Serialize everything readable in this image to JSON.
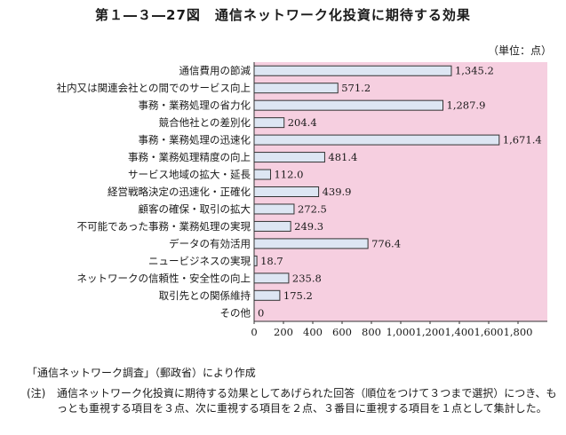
{
  "title": "第１―３―27図　通信ネットワーク化投資に期待する効果",
  "unit_label": "（単位：点）",
  "source": "「通信ネットワーク調査」（郵政省）により作成",
  "note_prefix": "(注)",
  "note_body": "通信ネットワーク化投資に期待する効果としてあげられた回答（順位をつけて３つまで選択）につき、もっとも重視する項目を３点、次に重視する項目を２点、３番目に重視する項目を１点として集計した。",
  "colors": {
    "plot_background": "#f6cfe0",
    "bar_fill": "#dde6f3",
    "bar_stroke": "#333333"
  },
  "chart_data": {
    "type": "bar",
    "orientation": "horizontal",
    "categories": [
      "通信費用の節減",
      "社内又は関連会社との間でのサービス向上",
      "事務・業務処理の省力化",
      "競合他社との差別化",
      "事務・業務処理の迅速化",
      "事務・業務処理精度の向上",
      "サービス地域の拡大・延長",
      "経営戦略決定の迅速化・正確化",
      "顧客の確保・取引の拡大",
      "不可能であった事務・業務処理の実現",
      "データの有効活用",
      "ニュービジネスの実現",
      "ネットワークの信頼性・安全性の向上",
      "取引先との関係維持",
      "その他"
    ],
    "values": [
      1345.2,
      571.2,
      1287.9,
      204.4,
      1671.4,
      481.4,
      112.0,
      439.9,
      272.5,
      249.3,
      776.4,
      18.7,
      235.8,
      175.2,
      0
    ],
    "value_labels": [
      "1,345.2",
      "571.2",
      "1,287.9",
      "204.4",
      "1,671.4",
      "481.4",
      "112.0",
      "439.9",
      "272.5",
      "249.3",
      "776.4",
      "18.7",
      "235.8",
      "175.2",
      "0"
    ],
    "xlim": [
      0,
      1800
    ],
    "x_ticks": [
      0,
      200,
      400,
      600,
      800,
      1000,
      1200,
      1400,
      1600,
      1800
    ],
    "x_tick_labels": [
      "0",
      "200",
      "400",
      "600",
      "800",
      "1,000",
      "1,200",
      "1,400",
      "1,600",
      "1,800"
    ],
    "xlabel": "",
    "ylabel": "",
    "grid": false
  }
}
